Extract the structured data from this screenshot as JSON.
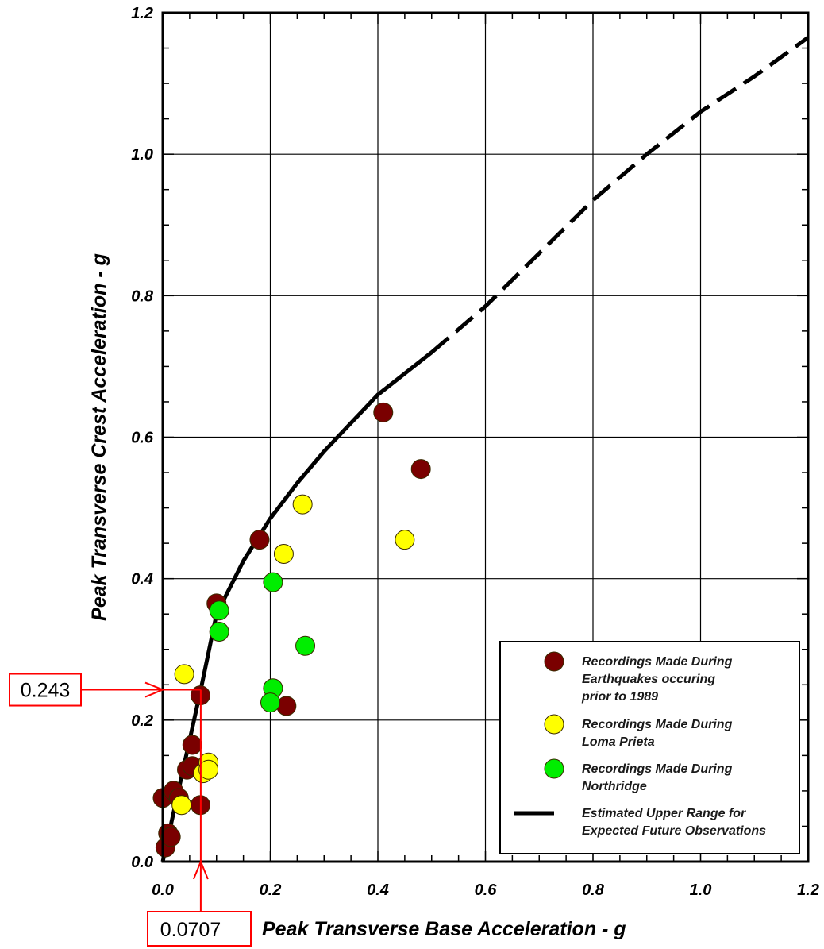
{
  "chart_data": {
    "type": "scatter",
    "xlabel": "Peak Transverse Base Acceleration - g",
    "ylabel": "Peak Transverse Crest Acceleration - g",
    "xlim": [
      0,
      1.2
    ],
    "ylim": [
      0,
      1.2
    ],
    "x_ticks": [
      "0.0",
      "0.2",
      "0.4",
      "0.6",
      "0.8",
      "1.0",
      "1.2"
    ],
    "y_ticks": [
      "0.0",
      "0.2",
      "0.4",
      "0.6",
      "0.8",
      "1.0",
      "1.2"
    ],
    "grid": true,
    "legend_position": "bottom-right",
    "series": [
      {
        "name": "Recordings Made During Earthquakes occuring prior to 1989",
        "name_lines": [
          "Recordings Made During",
          "Earthquakes occuring",
          "prior to 1989"
        ],
        "color": "#7a0000",
        "points": [
          [
            0.005,
            0.02
          ],
          [
            0.01,
            0.04
          ],
          [
            0.015,
            0.035
          ],
          [
            0.0,
            0.09
          ],
          [
            0.02,
            0.1
          ],
          [
            0.03,
            0.09
          ],
          [
            0.045,
            0.13
          ],
          [
            0.055,
            0.135
          ],
          [
            0.055,
            0.165
          ],
          [
            0.07,
            0.08
          ],
          [
            0.07,
            0.235
          ],
          [
            0.1,
            0.365
          ],
          [
            0.18,
            0.455
          ],
          [
            0.23,
            0.22
          ],
          [
            0.41,
            0.635
          ],
          [
            0.48,
            0.555
          ]
        ]
      },
      {
        "name": "Recordings Made During Loma Prieta",
        "name_lines": [
          "Recordings Made During",
          "Loma Prieta"
        ],
        "color": "#ffff00",
        "points": [
          [
            0.035,
            0.08
          ],
          [
            0.04,
            0.265
          ],
          [
            0.075,
            0.125
          ],
          [
            0.085,
            0.14
          ],
          [
            0.085,
            0.13
          ],
          [
            0.225,
            0.435
          ],
          [
            0.26,
            0.505
          ],
          [
            0.45,
            0.455
          ]
        ]
      },
      {
        "name": "Recordings Made During Northridge",
        "name_lines": [
          "Recordings Made During",
          "Northridge"
        ],
        "color": "#00ee00",
        "points": [
          [
            0.105,
            0.355
          ],
          [
            0.105,
            0.325
          ],
          [
            0.205,
            0.395
          ],
          [
            0.205,
            0.245
          ],
          [
            0.2,
            0.225
          ],
          [
            0.265,
            0.305
          ]
        ]
      },
      {
        "name": "Estimated Upper Range for Expected Future Observations",
        "name_lines": [
          "Estimated Upper Range for",
          "Expected Future Observations"
        ],
        "type": "line",
        "color": "#000000",
        "solid_until_x": 0.52,
        "points": [
          [
            0.0,
            0.0
          ],
          [
            0.0707,
            0.243
          ],
          [
            0.1,
            0.35
          ],
          [
            0.15,
            0.425
          ],
          [
            0.2,
            0.485
          ],
          [
            0.25,
            0.535
          ],
          [
            0.3,
            0.58
          ],
          [
            0.35,
            0.62
          ],
          [
            0.4,
            0.66
          ],
          [
            0.45,
            0.69
          ],
          [
            0.5,
            0.72
          ],
          [
            0.6,
            0.785
          ],
          [
            0.7,
            0.86
          ],
          [
            0.8,
            0.935
          ],
          [
            0.9,
            1.0
          ],
          [
            1.0,
            1.06
          ],
          [
            1.1,
            1.11
          ],
          [
            1.2,
            1.165
          ]
        ]
      }
    ],
    "annotations": [
      {
        "axis": "y",
        "label": "0.243",
        "value": 0.243
      },
      {
        "axis": "x",
        "label": "0.0707",
        "value": 0.0707
      }
    ],
    "annotation_color": "#ff0000"
  }
}
